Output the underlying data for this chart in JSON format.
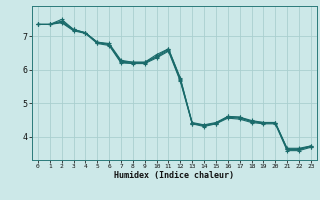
{
  "xlabel": "Humidex (Indice chaleur)",
  "xlim": [
    -0.5,
    23.5
  ],
  "ylim": [
    3.3,
    7.9
  ],
  "xticks": [
    0,
    1,
    2,
    3,
    4,
    5,
    6,
    7,
    8,
    9,
    10,
    11,
    12,
    13,
    14,
    15,
    16,
    17,
    18,
    19,
    20,
    21,
    22,
    23
  ],
  "yticks": [
    4,
    5,
    6,
    7
  ],
  "bg_color": "#cce8e8",
  "grid_color": "#aacfcf",
  "line_color": "#1a6b6b",
  "lines": [
    [
      7.35,
      7.35,
      7.5,
      7.2,
      7.1,
      6.82,
      6.75,
      6.25,
      6.22,
      6.22,
      6.45,
      6.62,
      5.75,
      4.38,
      4.35,
      4.38,
      4.6,
      4.58,
      4.45,
      4.42,
      4.42,
      3.62,
      3.62,
      3.72
    ],
    [
      7.35,
      7.35,
      7.45,
      7.2,
      7.1,
      6.82,
      6.78,
      6.28,
      6.22,
      6.22,
      6.4,
      6.62,
      5.72,
      4.42,
      4.35,
      4.42,
      4.6,
      4.58,
      4.48,
      4.42,
      4.42,
      3.65,
      3.65,
      3.72
    ],
    [
      7.35,
      7.35,
      7.42,
      7.18,
      7.1,
      6.8,
      6.75,
      6.22,
      6.2,
      6.2,
      6.38,
      6.58,
      5.68,
      4.4,
      4.32,
      4.4,
      4.58,
      4.55,
      4.45,
      4.4,
      4.4,
      3.62,
      3.62,
      3.7
    ],
    [
      7.35,
      7.35,
      7.4,
      7.16,
      7.08,
      6.78,
      6.72,
      6.2,
      6.18,
      6.18,
      6.35,
      6.55,
      5.65,
      4.38,
      4.3,
      4.38,
      4.55,
      4.52,
      4.42,
      4.38,
      4.38,
      3.58,
      3.58,
      3.68
    ]
  ]
}
